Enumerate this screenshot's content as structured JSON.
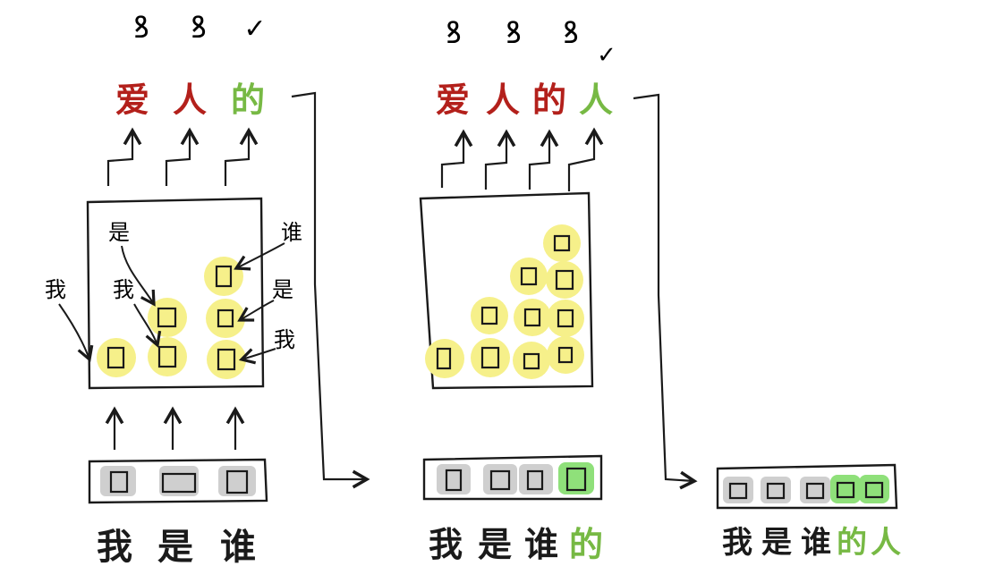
{
  "colors": {
    "ink": "#1a1a1a",
    "wrong": "#b3201b",
    "right": "#77b944",
    "state": "#f6f08a",
    "cell_gray": "#cfcfcf",
    "cell_green": "#8fe07a"
  },
  "panels": [
    {
      "top_marks": [
        "ꝸ",
        "ꝸ",
        "✓"
      ],
      "outputs": [
        {
          "text": "爱",
          "status": "wrong"
        },
        {
          "text": "人",
          "status": "wrong"
        },
        {
          "text": "的",
          "status": "right"
        }
      ],
      "inputs": [
        {
          "text": "我",
          "status": "plain"
        },
        {
          "text": "是",
          "status": "plain"
        },
        {
          "text": "谁",
          "status": "plain"
        }
      ],
      "inner_notes": [
        "是",
        "我"
      ],
      "side_notes_left": [
        "我"
      ],
      "side_notes_right": [
        "谁",
        "是",
        "我"
      ]
    },
    {
      "top_marks": [
        "ꝸ",
        "ꝸ",
        "ꝸ",
        "✓"
      ],
      "outputs": [
        {
          "text": "爱",
          "status": "wrong"
        },
        {
          "text": "人",
          "status": "wrong"
        },
        {
          "text": "的",
          "status": "wrong"
        },
        {
          "text": "人",
          "status": "right"
        }
      ],
      "inputs": [
        {
          "text": "我",
          "status": "plain"
        },
        {
          "text": "是",
          "status": "plain"
        },
        {
          "text": "谁",
          "status": "plain"
        },
        {
          "text": "的",
          "status": "right"
        }
      ]
    },
    {
      "inputs": [
        {
          "text": "我",
          "status": "plain"
        },
        {
          "text": "是",
          "status": "plain"
        },
        {
          "text": "谁",
          "status": "plain"
        },
        {
          "text": "的",
          "status": "right"
        },
        {
          "text": "人",
          "status": "right"
        }
      ]
    }
  ]
}
